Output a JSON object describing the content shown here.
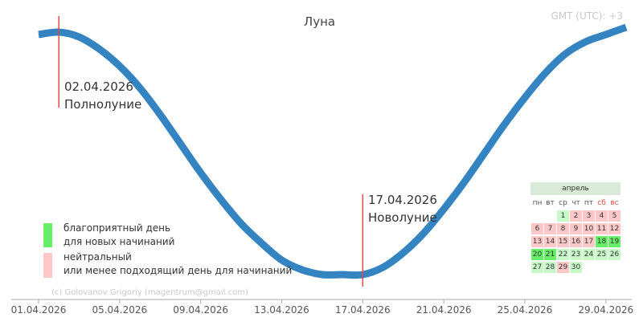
{
  "title": "Луна",
  "timezone": "GMT (UTC): +3",
  "credit": "(c) Golovanov Grigoriy (magentrum@gmail.com)",
  "events": [
    {
      "date": "02.04.2026",
      "name": "Полнолуние"
    },
    {
      "date": "17.04.2026",
      "name": "Новолуние"
    }
  ],
  "legend": {
    "favorable": {
      "line1": "благоприятный день",
      "line2": "для новых начинаний",
      "color": "#66ee66"
    },
    "neutral": {
      "line1": "нейтральный",
      "line2": "или менее подходящий день для начинаний",
      "color": "#ffc8c8"
    }
  },
  "colors": {
    "curve": "#3484c2",
    "event_line": "#e34a4a",
    "favorable": "#66ee66",
    "favorable_light": "#c8f7c8",
    "neutral": "#ffc8c8",
    "weekend_text": "#e34a4a"
  },
  "calendar": {
    "month": "апрель",
    "weekdays": [
      "пн",
      "вт",
      "ср",
      "чт",
      "пт",
      "сб",
      "вс"
    ],
    "weekend_indices": [
      5,
      6
    ],
    "first_weekday_index": 2,
    "days": [
      {
        "d": "1",
        "s": "fav_light"
      },
      {
        "d": "2",
        "s": "neu"
      },
      {
        "d": "3",
        "s": "neu"
      },
      {
        "d": "4",
        "s": "neu"
      },
      {
        "d": "5",
        "s": "neu"
      },
      {
        "d": "6",
        "s": "neu"
      },
      {
        "d": "7",
        "s": "neu"
      },
      {
        "d": "8",
        "s": "neu"
      },
      {
        "d": "9",
        "s": "neu"
      },
      {
        "d": "10",
        "s": "neu"
      },
      {
        "d": "11",
        "s": "neu"
      },
      {
        "d": "12",
        "s": "neu"
      },
      {
        "d": "13",
        "s": "neu"
      },
      {
        "d": "14",
        "s": "neu"
      },
      {
        "d": "15",
        "s": "neu"
      },
      {
        "d": "16",
        "s": "neu"
      },
      {
        "d": "17",
        "s": "neu"
      },
      {
        "d": "18",
        "s": "fav"
      },
      {
        "d": "19",
        "s": "fav"
      },
      {
        "d": "20",
        "s": "fav"
      },
      {
        "d": "21",
        "s": "fav"
      },
      {
        "d": "22",
        "s": "fav_light"
      },
      {
        "d": "23",
        "s": "fav_light"
      },
      {
        "d": "24",
        "s": "fav_light"
      },
      {
        "d": "25",
        "s": "fav_light"
      },
      {
        "d": "26",
        "s": "fav_light"
      },
      {
        "d": "27",
        "s": "fav_light"
      },
      {
        "d": "28",
        "s": "fav_light"
      },
      {
        "d": "29",
        "s": "neu"
      },
      {
        "d": "30",
        "s": "fav_light"
      }
    ]
  },
  "chart_data": {
    "type": "line",
    "title": "Луна",
    "xlabel": "",
    "ylabel": "",
    "x_ticks": [
      "01.04.2026",
      "05.04.2026",
      "09.04.2026",
      "13.04.2026",
      "17.04.2026",
      "21.04.2026",
      "25.04.2026",
      "29.04.2026"
    ],
    "xlim": [
      "01.04.2026",
      "30.04.2026"
    ],
    "ylim": [
      0,
      1
    ],
    "grid": false,
    "series": [
      {
        "x": [
          "01.04.2026",
          "02.04.2026",
          "03.04.2026",
          "04.04.2026",
          "05.04.2026",
          "06.04.2026",
          "07.04.2026",
          "08.04.2026",
          "09.04.2026",
          "10.04.2026",
          "11.04.2026",
          "12.04.2026",
          "13.04.2026",
          "14.04.2026",
          "15.04.2026",
          "16.04.2026",
          "17.04.2026",
          "18.04.2026",
          "19.04.2026",
          "20.04.2026",
          "21.04.2026",
          "22.04.2026",
          "23.04.2026",
          "24.04.2026",
          "25.04.2026",
          "26.04.2026",
          "27.04.2026",
          "28.04.2026",
          "29.04.2026",
          "30.04.2026"
        ],
        "values": [
          0.99,
          1.0,
          0.98,
          0.93,
          0.86,
          0.77,
          0.66,
          0.54,
          0.42,
          0.31,
          0.21,
          0.13,
          0.06,
          0.02,
          0.0,
          0.0,
          0.0,
          0.03,
          0.09,
          0.17,
          0.27,
          0.38,
          0.5,
          0.62,
          0.73,
          0.83,
          0.91,
          0.96,
          0.99,
          1.02
        ]
      }
    ],
    "events": [
      {
        "x": "02.04.2026",
        "label": "Полнолуние"
      },
      {
        "x": "17.04.2026",
        "label": "Новолуние"
      }
    ]
  }
}
